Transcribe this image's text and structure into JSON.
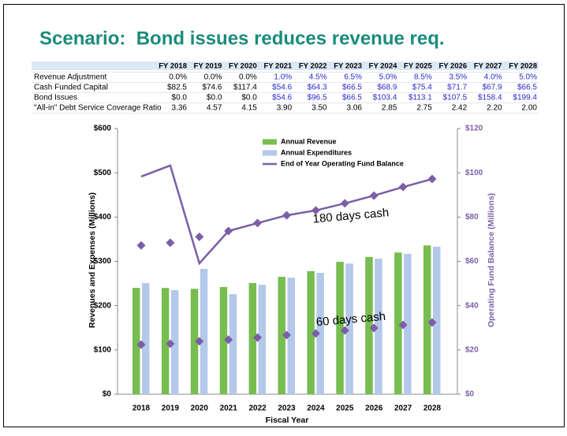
{
  "title": "Scenario:  Bond issues reduces revenue req.",
  "table": {
    "columns": [
      "FY 2018",
      "FY 2019",
      "FY 2020",
      "FY 2021",
      "FY 2022",
      "FY 2023",
      "FY 2024",
      "FY 2025",
      "FY 2026",
      "FY 2027",
      "FY 2028"
    ],
    "rows": [
      {
        "label": "Revenue Adjustment",
        "cells": [
          "0.0%",
          "0.0%",
          "0.0%",
          "1.0%",
          "4.5%",
          "6.5%",
          "5.0%",
          "8.5%",
          "3.5%",
          "4.0%",
          "5.0%"
        ]
      },
      {
        "label": "Cash Funded Capital",
        "cells": [
          "$82.5",
          "$74.6",
          "$117.4",
          "$54.6",
          "$64.3",
          "$66.5",
          "$68.9",
          "$75.4",
          "$71.7",
          "$67.9",
          "$66.5"
        ]
      },
      {
        "label": "Bond Issues",
        "cells": [
          "$0.0",
          "$0.0",
          "$0.0",
          "$54.6",
          "$96.5",
          "$66.5",
          "$103.4",
          "$113.1",
          "$107.5",
          "$158.4",
          "$199.4"
        ]
      },
      {
        "label": "\"All-in\" Debt Service Coverage Ratio",
        "cells": [
          "3.36",
          "4.57",
          "4.15",
          "3.90",
          "3.50",
          "3.06",
          "2.85",
          "2.75",
          "2.42",
          "2.20",
          "2.00"
        ]
      }
    ]
  },
  "chart_data": {
    "type": "bar",
    "categories": [
      "2018",
      "2019",
      "2020",
      "2021",
      "2022",
      "2023",
      "2024",
      "2025",
      "2026",
      "2027",
      "2028"
    ],
    "x_label": "Fiscal Year",
    "y_label": "Revenues and Expenses (Millions)",
    "y2_label": "Operating Fund Balance (Millions)",
    "ylim": [
      0,
      600
    ],
    "yticks": [
      {
        "value": 0,
        "label": "$0"
      },
      {
        "value": 100,
        "label": "$100"
      },
      {
        "value": 200,
        "label": "$200"
      },
      {
        "value": 300,
        "label": "$300"
      },
      {
        "value": 400,
        "label": "$400"
      },
      {
        "value": 500,
        "label": "$500"
      },
      {
        "value": 600,
        "label": "$600"
      }
    ],
    "y2lim": [
      0,
      120
    ],
    "y2ticks": [
      {
        "value": 0,
        "label": "$0"
      },
      {
        "value": 20,
        "label": "$20"
      },
      {
        "value": 40,
        "label": "$40"
      },
      {
        "value": 60,
        "label": "$60"
      },
      {
        "value": 80,
        "label": "$80"
      },
      {
        "value": 100,
        "label": "$100"
      },
      {
        "value": 120,
        "label": "$120"
      }
    ],
    "grid": false,
    "legend_position": "top",
    "series": [
      {
        "name": "Annual Revenue",
        "type": "bar",
        "color": "#77bd4f",
        "legend": true,
        "values": [
          240,
          240,
          238,
          242,
          251,
          265,
          278,
          299,
          310,
          320,
          336
        ]
      },
      {
        "name": "Annual Expenditures",
        "type": "bar",
        "color": "#b4c8e9",
        "legend": true,
        "values": [
          251,
          235,
          283,
          226,
          247,
          263,
          274,
          295,
          306,
          317,
          333
        ]
      },
      {
        "name": "End of Year Operating Fund Balance",
        "type": "line",
        "axis": "y2",
        "color": "#7b5ea7",
        "legend": true,
        "values": [
          98.3,
          103.3,
          59.1,
          73.7,
          77.3,
          80.8,
          83.0,
          86.2,
          89.7,
          93.6,
          97.2
        ]
      },
      {
        "name": "180 days cash",
        "type": "scatter",
        "axis": "y2",
        "color": "#7b5ea7",
        "legend": false,
        "values": [
          67.2,
          68.4,
          71.1,
          73.7,
          77.3,
          80.8,
          83.0,
          86.2,
          89.7,
          93.6,
          97.2
        ]
      },
      {
        "name": "60 days cash",
        "type": "scatter",
        "axis": "y2",
        "color": "#7b5ea7",
        "legend": false,
        "values": [
          22.4,
          22.8,
          23.9,
          24.6,
          25.6,
          26.7,
          27.4,
          28.8,
          29.9,
          31.3,
          32.4
        ]
      }
    ]
  }
}
